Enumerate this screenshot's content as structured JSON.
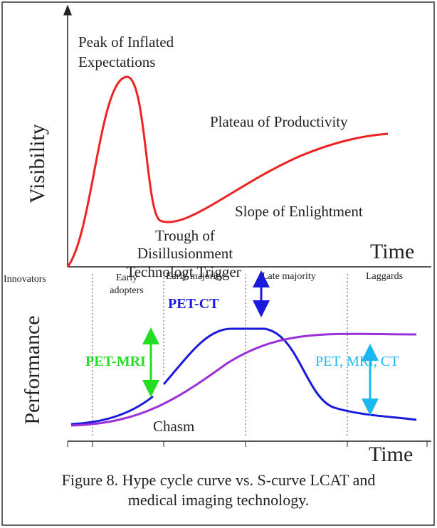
{
  "hype_cycle": {
    "y_axis_label": "Visibility",
    "x_axis_label": "Time",
    "phases": {
      "peak": [
        "Peak of Inflated",
        "Expectations"
      ],
      "plateau": "Plateau of Productivity",
      "slope": "Slope of Enlightment",
      "trough": [
        "Trough of",
        "Disillusionment"
      ],
      "trigger": "Technologt Trigger"
    }
  },
  "s_curve": {
    "y_axis_label": "Performance",
    "x_axis_label": "Time",
    "segments": [
      "Innovators",
      "Early adopters",
      "Early majority",
      "Late majority",
      "Laggards"
    ],
    "chasm": "Chasm",
    "annotations": [
      "PET-MRI",
      "PET-CT",
      "PET, MRI, CT"
    ]
  },
  "caption": [
    "Figure 8. Hype cycle curve vs. S-curve LCAT and",
    "medical imaging technology."
  ]
}
